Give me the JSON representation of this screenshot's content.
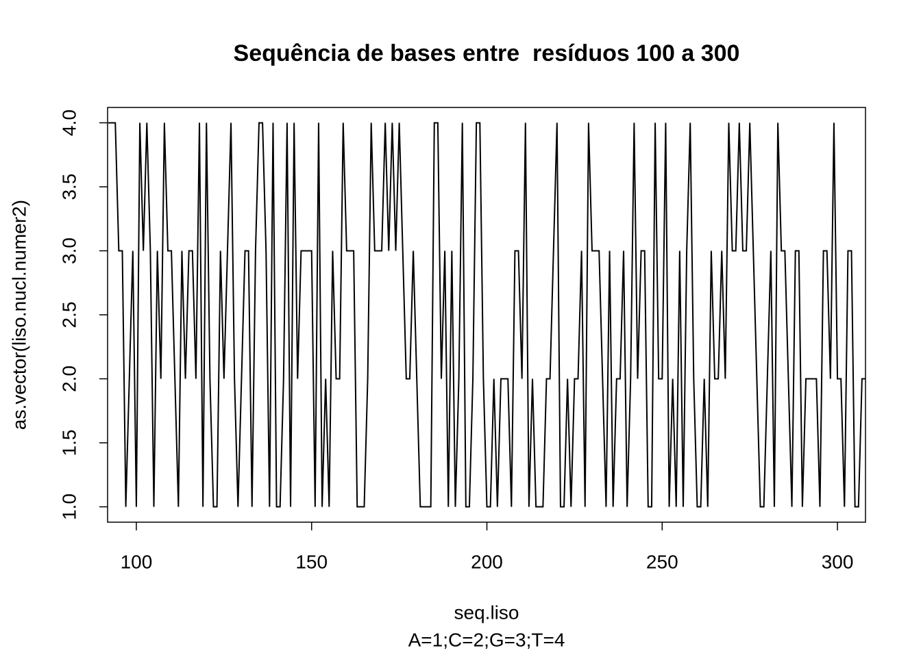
{
  "chart_data": {
    "type": "line",
    "title": "Sequência de bases entre  resíduos 100 a 300",
    "xlabel": "seq.liso",
    "subtitle": "A=1;C=2;G=3;T=4",
    "ylabel": "as.vector(liso.nucl.numer2)",
    "color": "#000000",
    "x": [
      92,
      93,
      94,
      95,
      96,
      97,
      98,
      99,
      100,
      101,
      102,
      103,
      104,
      105,
      106,
      107,
      108,
      109,
      110,
      111,
      112,
      113,
      114,
      115,
      116,
      117,
      118,
      119,
      120,
      121,
      122,
      123,
      124,
      125,
      126,
      127,
      128,
      129,
      130,
      131,
      132,
      133,
      134,
      135,
      136,
      137,
      138,
      139,
      140,
      141,
      142,
      143,
      144,
      145,
      146,
      147,
      148,
      149,
      150,
      151,
      152,
      153,
      154,
      155,
      156,
      157,
      158,
      159,
      160,
      161,
      162,
      163,
      164,
      165,
      166,
      167,
      168,
      169,
      170,
      171,
      172,
      173,
      174,
      175,
      176,
      177,
      178,
      179,
      180,
      181,
      182,
      183,
      184,
      185,
      186,
      187,
      188,
      189,
      190,
      191,
      192,
      193,
      194,
      195,
      196,
      197,
      198,
      199,
      200,
      201,
      202,
      203,
      204,
      205,
      206,
      207,
      208,
      209,
      210,
      211,
      212,
      213,
      214,
      215,
      216,
      217,
      218,
      219,
      220,
      221,
      222,
      223,
      224,
      225,
      226,
      227,
      228,
      229,
      230,
      231,
      232,
      233,
      234,
      235,
      236,
      237,
      238,
      239,
      240,
      241,
      242,
      243,
      244,
      245,
      246,
      247,
      248,
      249,
      250,
      251,
      252,
      253,
      254,
      255,
      256,
      257,
      258,
      259,
      260,
      261,
      262,
      263,
      264,
      265,
      266,
      267,
      268,
      269,
      270,
      271,
      272,
      273,
      274,
      275,
      276,
      277,
      278,
      279,
      280,
      281,
      282,
      283,
      284,
      285,
      286,
      287,
      288,
      289,
      290,
      291,
      292,
      293,
      294,
      295,
      296,
      297,
      298,
      299,
      300,
      301,
      302,
      303,
      304,
      305,
      306,
      307,
      308
    ],
    "values": [
      4,
      4,
      4,
      3,
      3,
      1,
      2,
      3,
      1,
      4,
      3,
      4,
      3,
      1,
      3,
      2,
      4,
      3,
      3,
      2,
      1,
      3,
      2,
      3,
      3,
      2,
      4,
      1,
      4,
      2,
      1,
      1,
      3,
      2,
      3,
      4,
      2,
      1,
      2,
      3,
      3,
      1,
      3,
      4,
      4,
      3,
      1,
      4,
      1,
      1,
      2,
      4,
      1,
      4,
      2,
      3,
      3,
      3,
      3,
      1,
      4,
      1,
      2,
      1,
      3,
      2,
      2,
      4,
      3,
      3,
      3,
      1,
      1,
      1,
      2,
      4,
      3,
      3,
      3,
      4,
      3,
      4,
      3,
      4,
      3,
      2,
      2,
      3,
      2,
      1,
      1,
      1,
      1,
      4,
      4,
      2,
      3,
      1,
      3,
      1,
      2,
      4,
      1,
      1,
      2,
      4,
      4,
      2,
      1,
      1,
      2,
      1,
      2,
      2,
      2,
      1,
      3,
      3,
      2,
      4,
      1,
      2,
      1,
      1,
      1,
      2,
      2,
      3,
      4,
      1,
      1,
      2,
      1,
      2,
      2,
      3,
      1,
      4,
      3,
      3,
      3,
      2,
      1,
      3,
      1,
      2,
      2,
      3,
      1,
      2,
      4,
      2,
      3,
      3,
      1,
      1,
      4,
      2,
      2,
      4,
      1,
      2,
      1,
      3,
      1,
      3,
      4,
      2,
      1,
      1,
      2,
      1,
      3,
      2,
      2,
      3,
      2,
      4,
      3,
      3,
      4,
      3,
      3,
      4,
      3,
      2,
      1,
      1,
      2,
      3,
      1,
      4,
      3,
      3,
      2,
      1,
      3,
      3,
      1,
      2,
      2,
      2,
      2,
      1,
      3,
      3,
      2,
      4,
      2,
      2,
      1,
      3,
      3,
      1,
      1,
      2,
      2
    ],
    "xlim": [
      91.8,
      308.0
    ],
    "ylim": [
      0.88,
      4.12
    ],
    "xticks": [
      100,
      150,
      200,
      250,
      300
    ],
    "yticks": [
      {
        "value": 1,
        "label": "1.0"
      },
      {
        "value": 1.5,
        "label": "1.5"
      },
      {
        "value": 2,
        "label": "2.0"
      },
      {
        "value": 2.5,
        "label": "2.5"
      },
      {
        "value": 3,
        "label": "3.0"
      },
      {
        "value": 3.5,
        "label": "3.5"
      },
      {
        "value": 4,
        "label": "4.0"
      }
    ]
  }
}
